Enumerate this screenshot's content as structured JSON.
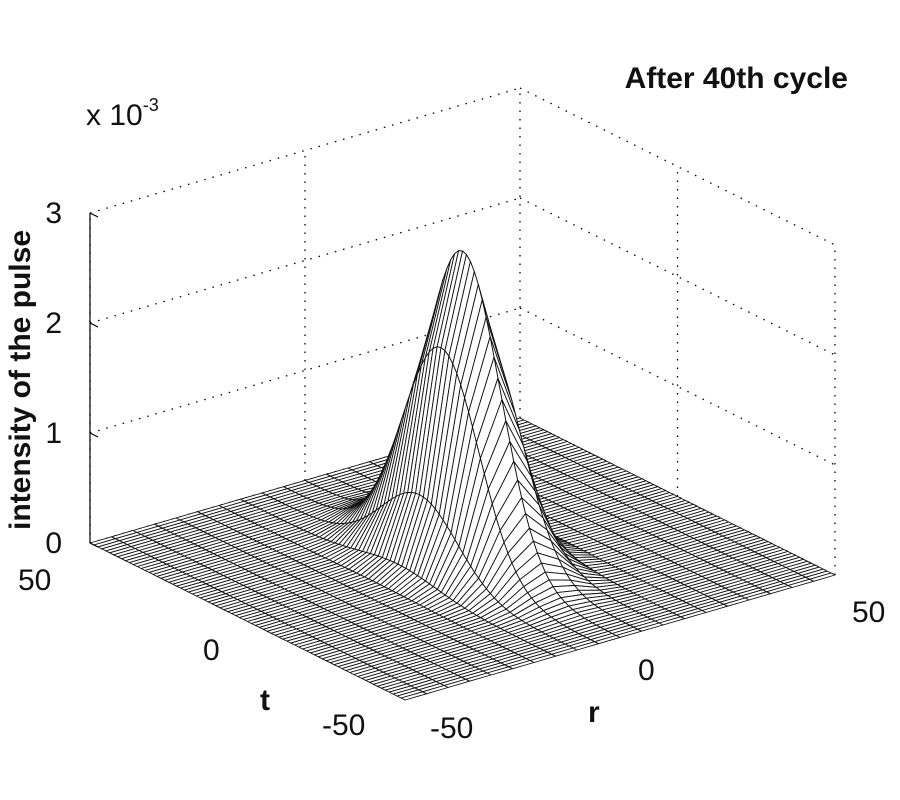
{
  "chart_data": {
    "type": "surface",
    "title": "After 40th cycle",
    "xlabel": "r",
    "ylabel": "t",
    "zlabel": "intensity of the pulse",
    "z_multiplier": "x 10",
    "z_exponent": "-3",
    "xlim": [
      -50,
      50
    ],
    "ylim": [
      -50,
      50
    ],
    "zlim": [
      0,
      3
    ],
    "x_ticks": [
      "-50",
      "0",
      "50"
    ],
    "y_ticks": [
      "50",
      "0",
      "-50"
    ],
    "z_ticks": [
      "0",
      "1",
      "2",
      "3"
    ],
    "peak": {
      "r": 0,
      "t": 0,
      "value": 2.8
    },
    "sigma_r": 6,
    "sigma_t": 12,
    "grid": "on"
  }
}
